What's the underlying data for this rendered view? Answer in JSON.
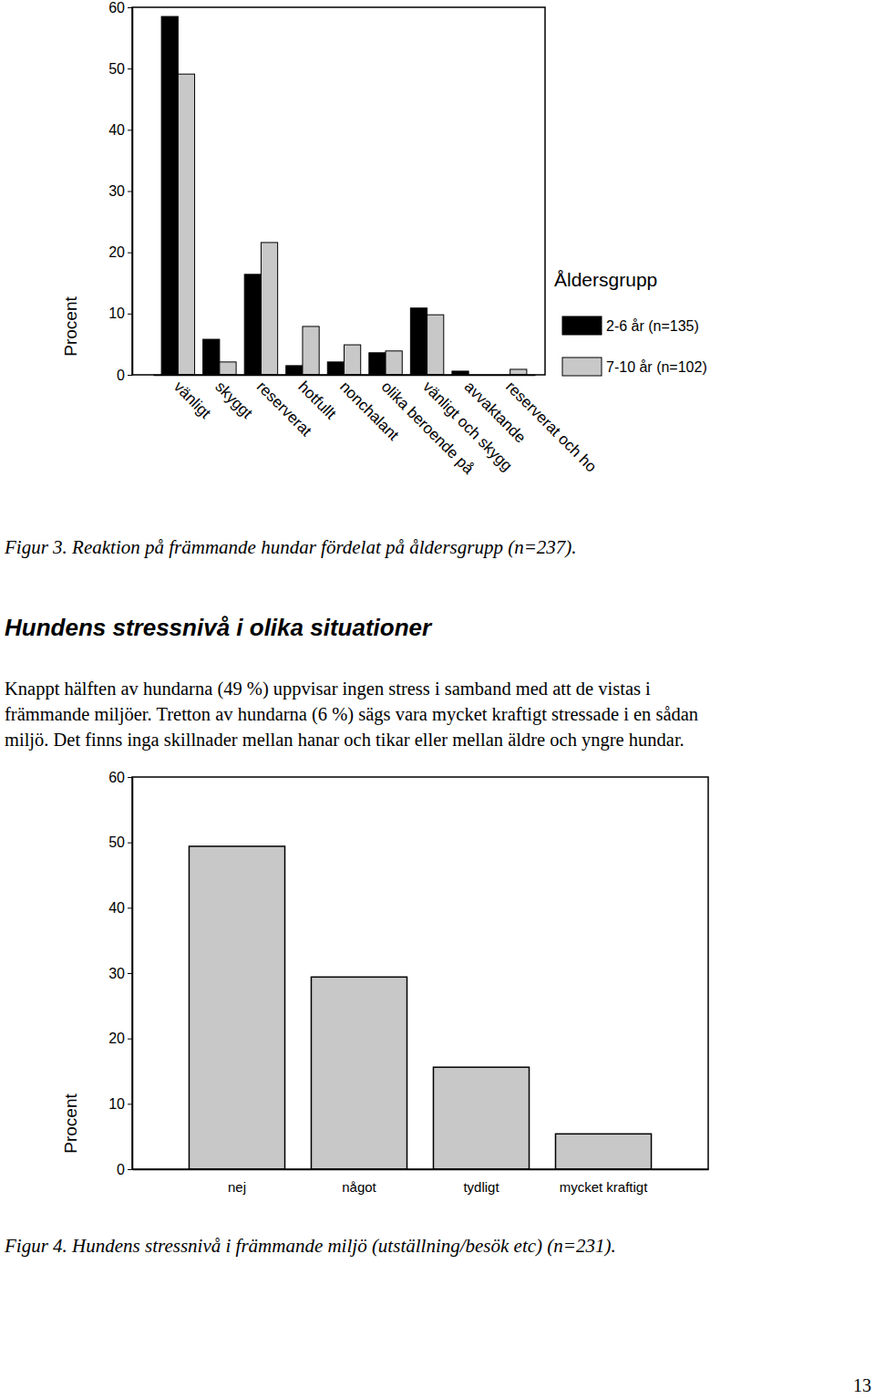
{
  "chart_data": [
    {
      "type": "bar",
      "categories": [
        "vänligt",
        "skyggt",
        "reserverat",
        "hotfullt",
        "nonchalant",
        "olika beroende på",
        "vänligt och skygg",
        "avvaktande",
        "reserverat och ho"
      ],
      "series": [
        {
          "name": "2-6 år (n=135)",
          "color": "#000000",
          "values": [
            58.5,
            5.8,
            16.4,
            1.5,
            2.1,
            3.6,
            10.9,
            0.6,
            0
          ]
        },
        {
          "name": "7-10 år (n=102)",
          "color": "#c8c8c8",
          "values": [
            49.1,
            2.1,
            21.6,
            7.9,
            4.9,
            3.9,
            9.8,
            0,
            0.9
          ]
        }
      ],
      "ylabel": "Procent",
      "legend_title": "Åldersgrupp",
      "legend": "right",
      "ylim": [
        0,
        60
      ],
      "yticks": [
        0,
        10,
        20,
        30,
        40,
        50,
        60
      ]
    },
    {
      "type": "bar",
      "categories": [
        "nej",
        "något",
        "tydligt",
        "mycket kraftigt"
      ],
      "values": [
        49.4,
        29.4,
        15.6,
        5.4
      ],
      "color": "#c8c8c8",
      "ylabel": "Procent",
      "ylim": [
        0,
        60
      ],
      "yticks": [
        0,
        10,
        20,
        30,
        40,
        50,
        60
      ]
    }
  ],
  "document": {
    "figure_3_caption": "Figur 3. Reaktion på främmande hundar fördelat på åldersgrupp (n=237).",
    "heading": "Hundens stressnivå i olika situationer",
    "paragraph": [
      "Knappt hälften av hundarna (49 %) uppvisar ingen stress i samband med att de vistas i",
      "främmande miljöer. Tretton av hundarna (6 %) sägs vara mycket kraftigt stressade i en sådan",
      "miljö. Det finns inga skillnader mellan hanar och tikar eller mellan äldre och yngre hundar."
    ],
    "figure_4_caption": "Figur 4. Hundens stressnivå i främmande miljö (utställning/besök etc) (n=231).",
    "page_number": 13
  }
}
